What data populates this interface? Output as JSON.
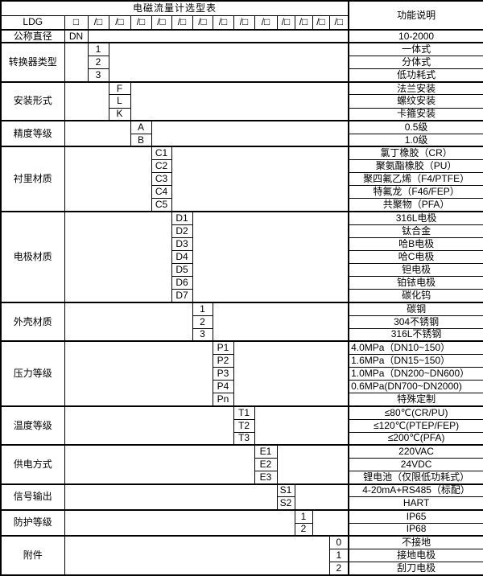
{
  "title": "电磁流量计选型表",
  "function_header": "功能说明",
  "colors": {
    "border": "#000000",
    "background": "#ffffff",
    "text": "#000000"
  },
  "model_row": {
    "prefix": "LDG",
    "first_box": "□",
    "slot": "/□",
    "slot_count": 13
  },
  "diameter_row": {
    "label": "公称直径",
    "code": "DN",
    "function": "10-2000"
  },
  "groups": [
    {
      "key": "converter-type",
      "label": "转换器类型",
      "col": 1,
      "options": [
        {
          "code": "1",
          "function": "一体式"
        },
        {
          "code": "2",
          "function": "分体式"
        },
        {
          "code": "3",
          "function": "低功耗式"
        }
      ]
    },
    {
      "key": "installation-type",
      "label": "安装形式",
      "col": 2,
      "options": [
        {
          "code": "F",
          "function": "法兰安装"
        },
        {
          "code": "L",
          "function": "螺纹安装"
        },
        {
          "code": "K",
          "function": "卡箍安装"
        }
      ]
    },
    {
      "key": "accuracy-class",
      "label": "精度等级",
      "col": 3,
      "options": [
        {
          "code": "A",
          "function": "0.5级"
        },
        {
          "code": "B",
          "function": "1.0级"
        }
      ]
    },
    {
      "key": "liner-material",
      "label": "衬里材质",
      "col": 4,
      "options": [
        {
          "code": "C1",
          "function": "氯丁橡胶（CR）"
        },
        {
          "code": "C2",
          "function": "聚氨酯橡胶（PU）"
        },
        {
          "code": "C3",
          "function": "聚四氟乙烯（F4/PTFE）"
        },
        {
          "code": "C4",
          "function": "特氟龙（F46/FEP）"
        },
        {
          "code": "C5",
          "function": "共聚物（PFA）"
        }
      ]
    },
    {
      "key": "electrode-material",
      "label": "电极材质",
      "col": 5,
      "options": [
        {
          "code": "D1",
          "function": "316L电极"
        },
        {
          "code": "D2",
          "function": "钛合金"
        },
        {
          "code": "D3",
          "function": "哈B电极"
        },
        {
          "code": "D4",
          "function": "哈C电极"
        },
        {
          "code": "D5",
          "function": "钽电极"
        },
        {
          "code": "D6",
          "function": "铂铱电极"
        },
        {
          "code": "D7",
          "function": "碳化钨"
        }
      ]
    },
    {
      "key": "housing-material",
      "label": "外壳材质",
      "col": 6,
      "options": [
        {
          "code": "1",
          "function": "碳钢"
        },
        {
          "code": "2",
          "function": "304不锈钢"
        },
        {
          "code": "3",
          "function": "316L不锈钢"
        }
      ]
    },
    {
      "key": "pressure-rating",
      "label": "压力等级",
      "col": 7,
      "options": [
        {
          "code": "P1",
          "function": "4.0MPa（DN10~150）",
          "align": "left"
        },
        {
          "code": "P2",
          "function": "1.6MPa（DN15~150）",
          "align": "left"
        },
        {
          "code": "P3",
          "function": "1.0MPa（DN200~DN600）",
          "align": "left"
        },
        {
          "code": "P4",
          "function": "0.6MPa(DN700~DN2000)",
          "align": "left"
        },
        {
          "code": "Pn",
          "function": "特殊定制"
        }
      ]
    },
    {
      "key": "temperature-rating",
      "label": "温度等级",
      "col": 8,
      "options": [
        {
          "code": "T1",
          "function": "≤80℃(CR/PU)"
        },
        {
          "code": "T2",
          "function": "≤120℃(PTEP/FEP)"
        },
        {
          "code": "T3",
          "function": "≤200℃(PFA)"
        }
      ]
    },
    {
      "key": "power-supply",
      "label": "供电方式",
      "col": 9,
      "options": [
        {
          "code": "E1",
          "function": "220VAC"
        },
        {
          "code": "E2",
          "function": "24VDC"
        },
        {
          "code": "E3",
          "function": "锂电池（仅限低功耗式）"
        }
      ]
    },
    {
      "key": "signal-output",
      "label": "信号输出",
      "col": 10,
      "options": [
        {
          "code": "S1",
          "function": "4-20mA+RS485（标配）"
        },
        {
          "code": "S2",
          "function": "HART"
        }
      ]
    },
    {
      "key": "protection-rating",
      "label": "防护等级",
      "col": 11,
      "options": [
        {
          "code": "1",
          "function": "IP65"
        },
        {
          "code": "2",
          "function": "IP68"
        }
      ]
    },
    {
      "key": "accessories",
      "label": "附件",
      "col": 13,
      "options": [
        {
          "code": "0",
          "function": "不接地"
        },
        {
          "code": "1",
          "function": "接地电极"
        },
        {
          "code": "2",
          "function": "刮刀电极"
        }
      ]
    }
  ]
}
